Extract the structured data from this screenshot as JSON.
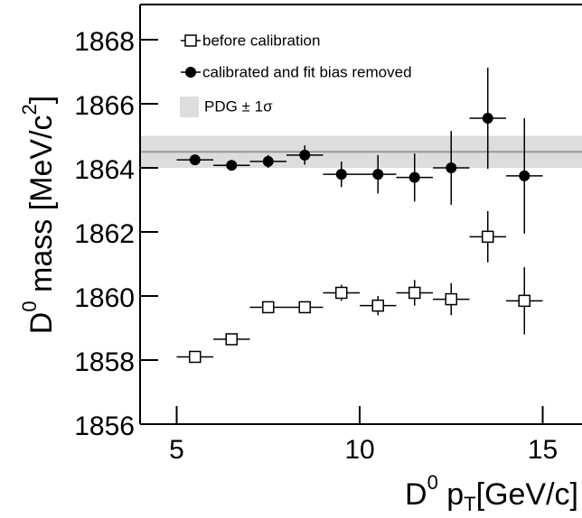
{
  "chart_data": {
    "type": "errorbar",
    "x_label": [
      "D",
      "0",
      " p",
      "T",
      "[GeV/c]"
    ],
    "y_label": [
      "D",
      "0",
      " mass [MeV/c",
      "2",
      "]"
    ],
    "xlim": [
      4,
      16
    ],
    "ylim": [
      1856,
      1869.1
    ],
    "xticks": [
      5,
      10,
      15
    ],
    "yticks": [
      1856,
      1858,
      1860,
      1862,
      1864,
      1866,
      1868
    ],
    "band": {
      "name": "PDG ± 1σ",
      "value": 1864.5,
      "error": 0.5,
      "color": "#dddddd",
      "line_color": "#999999"
    },
    "series": [
      {
        "name": "before calibration",
        "marker": "open-square",
        "color": "#000000",
        "x": [
          5.5,
          6.5,
          7.5,
          8.5,
          9.5,
          10.5,
          11.5,
          12.5,
          13.5,
          14.5
        ],
        "xerr": [
          0.5,
          0.5,
          0.5,
          0.5,
          0.5,
          0.5,
          0.5,
          0.5,
          0.5,
          0.5
        ],
        "values": [
          1858.1,
          1858.65,
          1859.65,
          1859.65,
          1860.1,
          1859.7,
          1860.1,
          1859.9,
          1861.85,
          1859.85
        ],
        "errors": [
          0.1,
          0.1,
          0.1,
          0.15,
          0.25,
          0.3,
          0.4,
          0.5,
          0.8,
          1.05
        ]
      },
      {
        "name": "calibrated and fit bias removed",
        "marker": "filled-circle",
        "color": "#000000",
        "x": [
          5.5,
          6.5,
          7.5,
          8.5,
          9.5,
          10.5,
          11.5,
          12.5,
          13.5,
          14.5
        ],
        "xerr": [
          0.5,
          0.5,
          0.5,
          0.5,
          0.5,
          0.5,
          0.5,
          0.5,
          0.5,
          0.5
        ],
        "values": [
          1864.25,
          1864.08,
          1864.2,
          1864.4,
          1863.8,
          1863.8,
          1863.7,
          1864.0,
          1865.55,
          1863.75
        ],
        "errors": [
          0.15,
          0.15,
          0.2,
          0.3,
          0.4,
          0.6,
          0.75,
          1.15,
          1.58,
          1.8
        ]
      }
    ]
  }
}
